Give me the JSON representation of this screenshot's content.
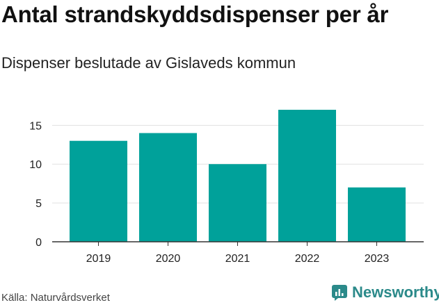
{
  "chart_data": {
    "type": "bar",
    "title": "Antal strandskyddsdispenser per år",
    "subtitle": "Dispenser beslutade av Gislaveds kommun",
    "categories": [
      "2019",
      "2020",
      "2021",
      "2022",
      "2023"
    ],
    "values": [
      13,
      14,
      10,
      17,
      7
    ],
    "ylim": [
      0,
      17
    ],
    "yticks": [
      0,
      5,
      10,
      15
    ],
    "ytick_labels": [
      "0",
      "5",
      "10",
      "15"
    ],
    "xlabel": "",
    "ylabel": "",
    "grid": true,
    "bar_color": "#00a19a",
    "grid_color": "#e1e1e1",
    "axis_color": "#333333"
  },
  "footer": {
    "source": "Källa: Naturvårdsverket",
    "brand": "Newsworthy",
    "brand_icon": "newsworthy-logo-icon",
    "brand_color": "#2b8a8a"
  }
}
